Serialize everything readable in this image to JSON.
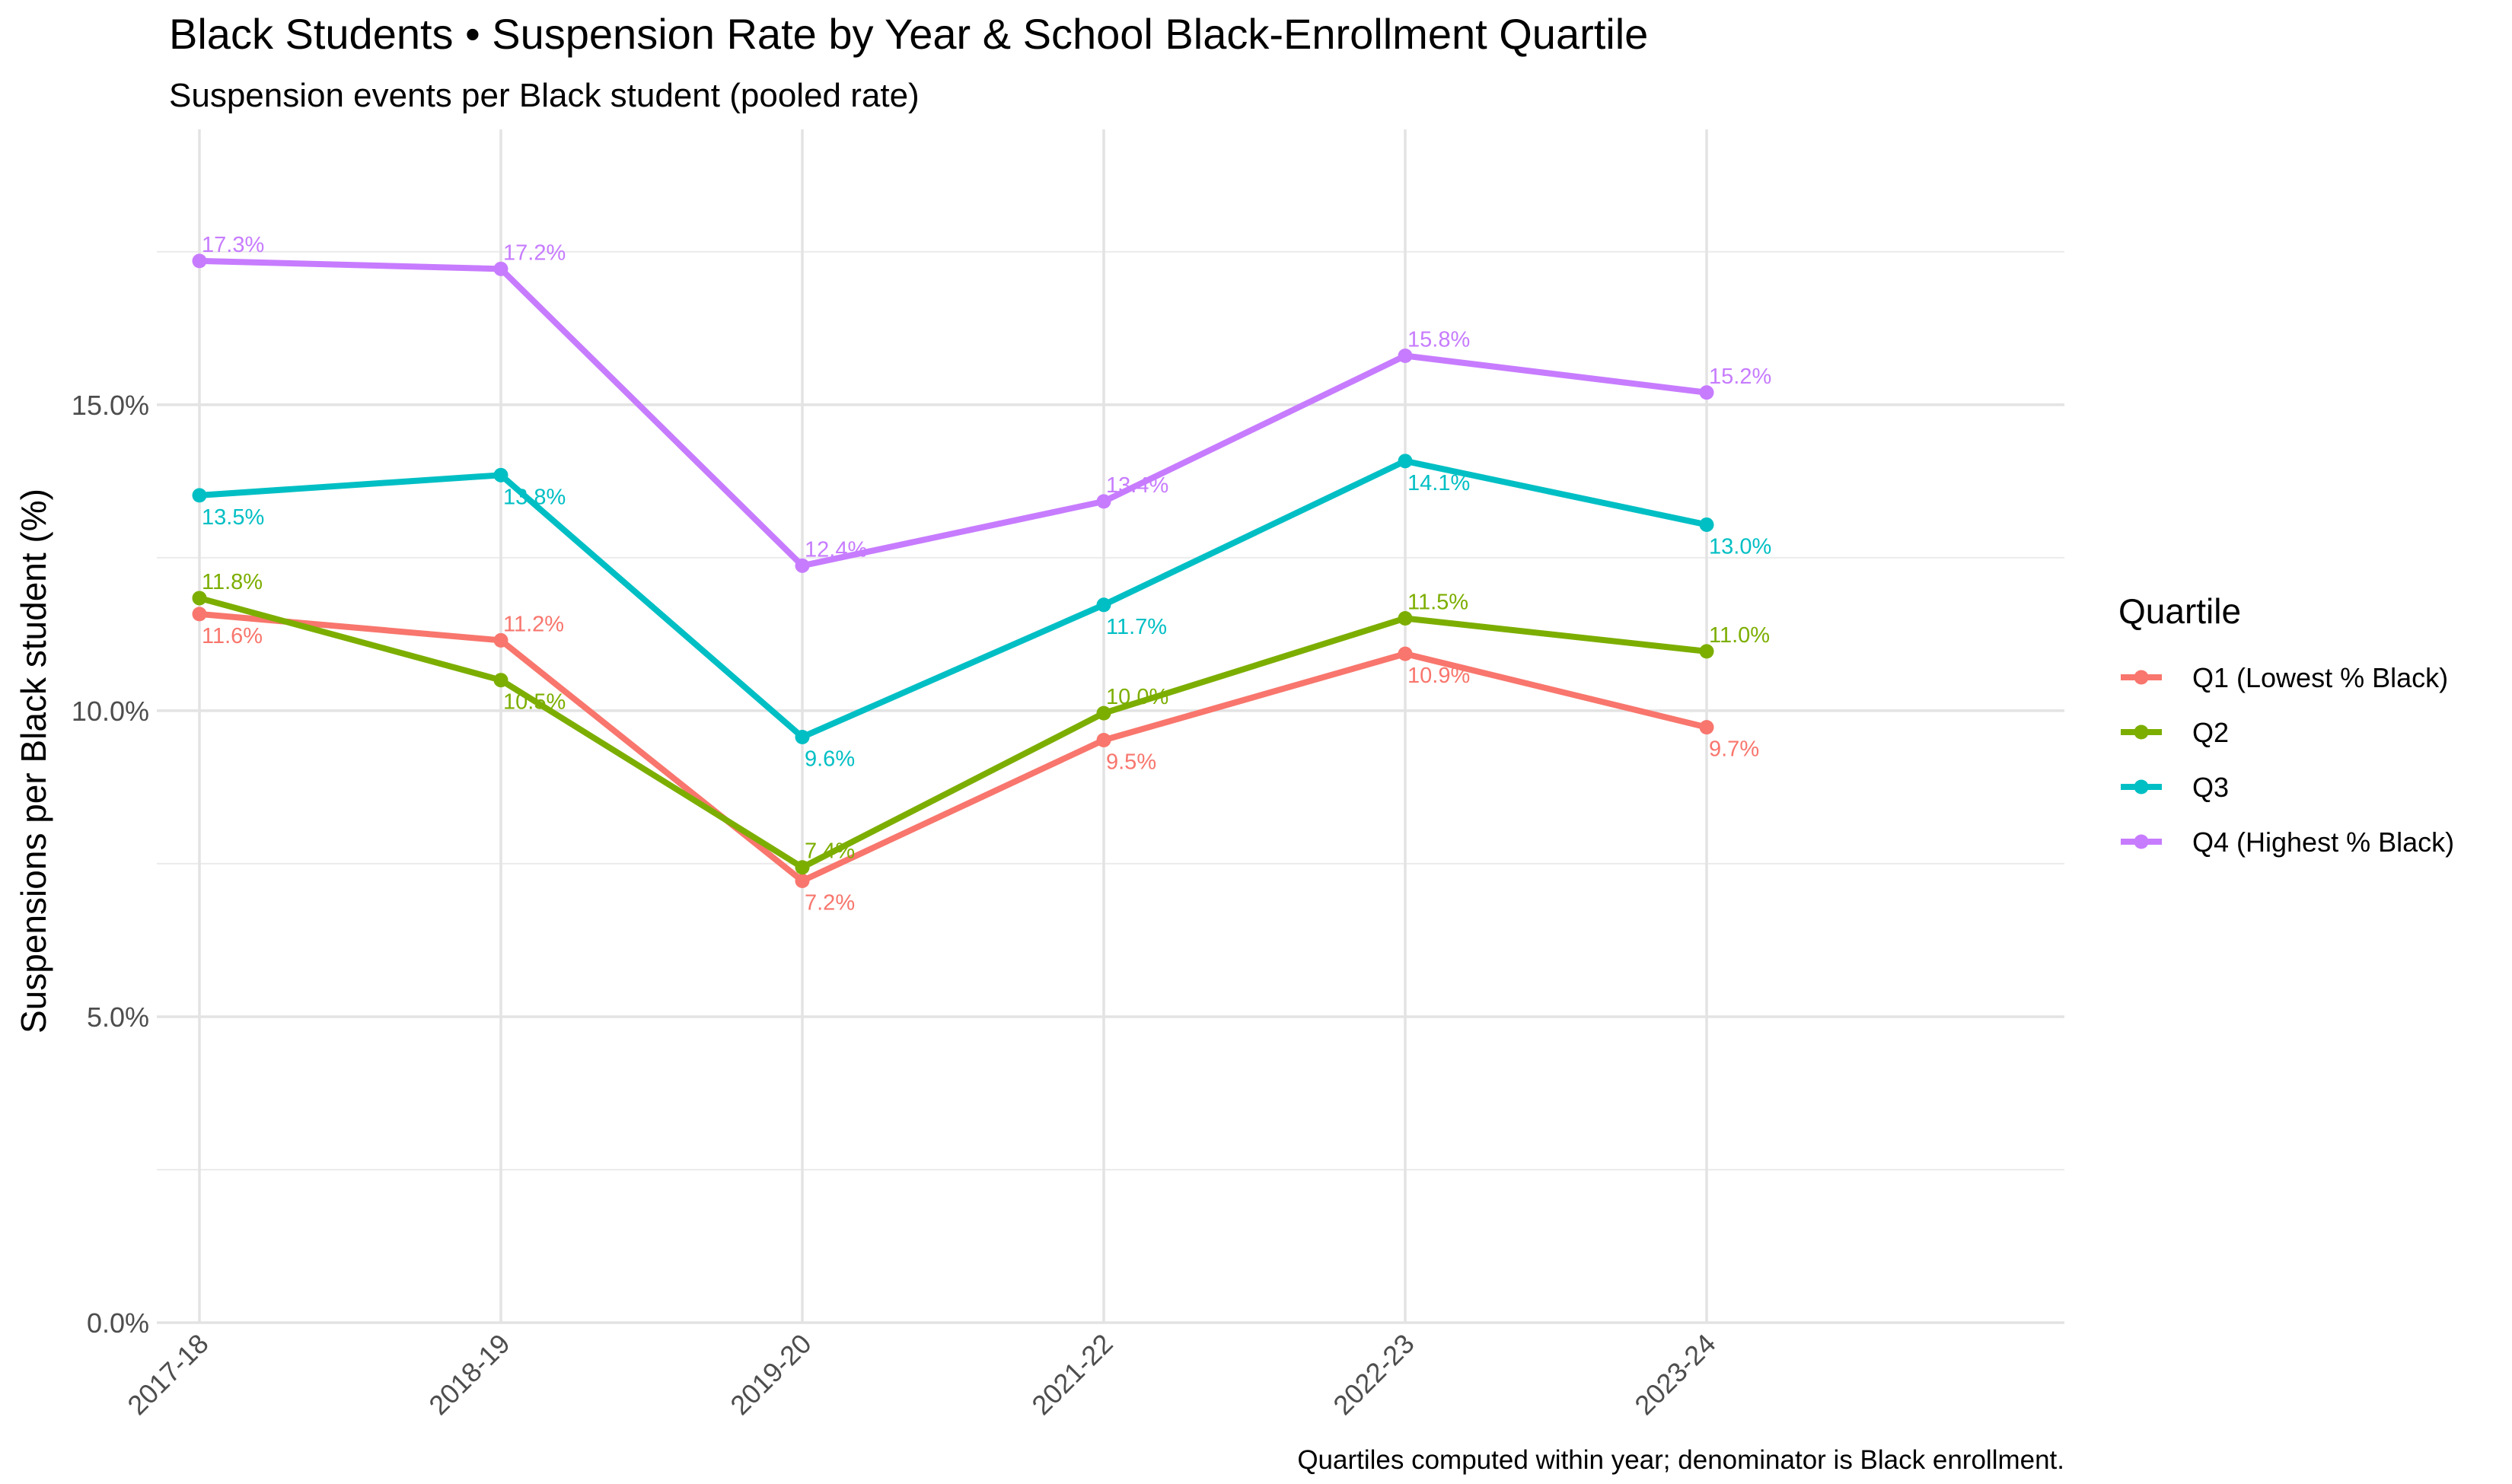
{
  "chart_data": {
    "type": "line",
    "title": "Black Students • Suspension Rate by Year & School Black-Enrollment Quartile",
    "subtitle": "Suspension events per Black student (pooled rate)",
    "xlabel": "",
    "ylabel": "Suspensions per Black student (%)",
    "caption": "Quartiles computed within year; denominator is Black enrollment.",
    "categories": [
      "2017-18",
      "2018-19",
      "2019-20",
      "2021-22",
      "2022-23",
      "2023-24"
    ],
    "y_ticks": [
      0,
      5,
      10,
      15
    ],
    "y_tick_labels": [
      "0.0%",
      "5.0%",
      "10.0%",
      "15.0%"
    ],
    "ylim": [
      0,
      19.5
    ],
    "grid": true,
    "legend": {
      "title": "Quartile",
      "position": "right"
    },
    "series": [
      {
        "name": "Q1 (Lowest % Black)",
        "color": "#F8766D",
        "values": [
          11.58,
          11.15,
          7.22,
          9.52,
          10.93,
          9.73
        ],
        "labels": [
          "11.6%",
          "11.2%",
          "7.2%",
          "9.5%",
          "10.9%",
          "9.7%"
        ]
      },
      {
        "name": "Q2",
        "color": "#7CAE00",
        "values": [
          11.84,
          10.5,
          7.44,
          9.96,
          11.51,
          10.97
        ],
        "labels": [
          "11.8%",
          "10.5%",
          "7.4%",
          "10.0%",
          "11.5%",
          "11.0%"
        ]
      },
      {
        "name": "Q3",
        "color": "#00BFC4",
        "values": [
          13.52,
          13.85,
          9.57,
          11.73,
          14.08,
          13.04
        ],
        "labels": [
          "13.5%",
          "13.8%",
          "9.6%",
          "11.7%",
          "14.1%",
          "13.0%"
        ]
      },
      {
        "name": "Q4 (Highest % Black)",
        "color": "#C77CFF",
        "values": [
          17.35,
          17.22,
          12.37,
          13.42,
          15.8,
          15.2
        ],
        "labels": [
          "17.3%",
          "17.2%",
          "12.4%",
          "13.4%",
          "15.8%",
          "15.2%"
        ]
      }
    ]
  }
}
